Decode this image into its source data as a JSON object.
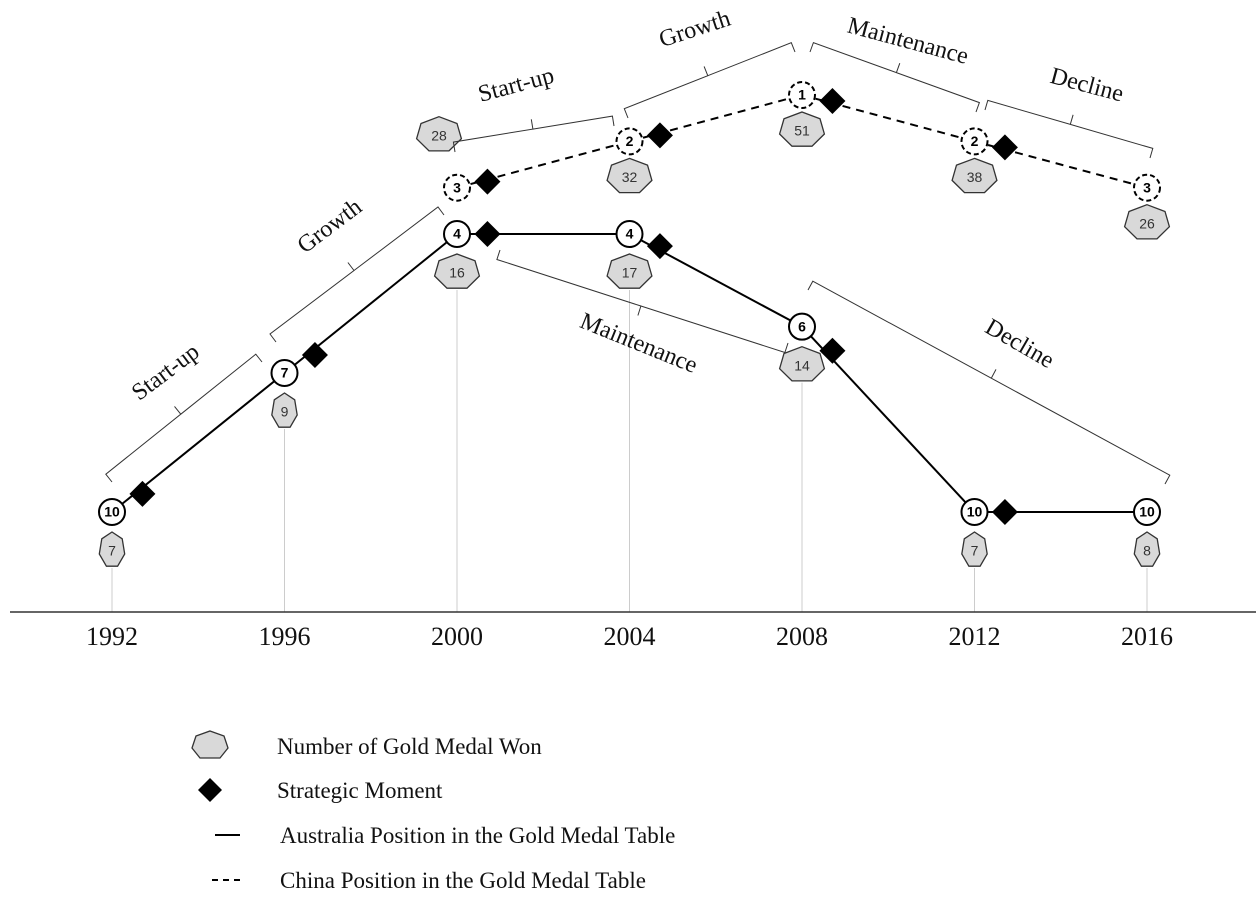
{
  "years": [
    1992,
    1996,
    2000,
    2004,
    2008,
    2012,
    2016
  ],
  "australia": {
    "ranks": [
      10,
      7,
      4,
      4,
      6,
      10,
      10
    ],
    "medals": [
      7,
      9,
      16,
      17,
      14,
      7,
      8
    ],
    "phases": [
      "Start-up",
      "Growth",
      "Maintenance",
      "Decline"
    ]
  },
  "china": {
    "ranks": [
      3,
      2,
      1,
      2,
      3
    ],
    "medals": [
      28,
      32,
      51,
      38,
      26
    ],
    "phases": [
      "Start-up",
      "Growth",
      "Maintenance",
      "Decline"
    ]
  },
  "legend": [
    "Number of Gold Medal Won",
    "Strategic Moment",
    "Australia Position in the Gold Medal Table",
    "China Position in the Gold Medal Table"
  ]
}
